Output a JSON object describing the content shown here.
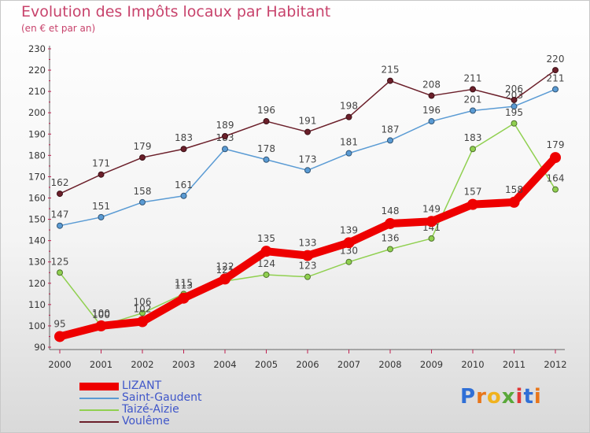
{
  "title": "Evolution des Impôts locaux par Habitant",
  "subtitle": "(en € et par an)",
  "brand": {
    "text": "Proxiti",
    "letters": [
      "P",
      "r",
      "o",
      "x",
      "i",
      "t",
      "i"
    ],
    "colors": [
      "#2f6fd6",
      "#e8761a",
      "#f0b21e",
      "#5aa83a",
      "#e03838",
      "#2f6fd6",
      "#e8761a"
    ]
  },
  "chart_data": {
    "type": "line",
    "title": "Evolution des Impôts locaux par Habitant",
    "subtitle": "(en € et par an)",
    "xlabel": "",
    "ylabel": "",
    "x": [
      "2000",
      "2001",
      "2002",
      "2003",
      "2004",
      "2005",
      "2006",
      "2007",
      "2008",
      "2009",
      "2010",
      "2011",
      "2012"
    ],
    "ylim": [
      90,
      230
    ],
    "yticks": [
      90,
      100,
      110,
      120,
      130,
      140,
      150,
      160,
      170,
      180,
      190,
      200,
      210,
      220,
      230
    ],
    "grid": false,
    "legend_position": "bottom-left",
    "series": [
      {
        "name": "LIZANT",
        "color": "#ee0000",
        "emphasis": true,
        "values": [
          95,
          100,
          102,
          113,
          122,
          135,
          133,
          139,
          148,
          149,
          157,
          158,
          179
        ]
      },
      {
        "name": "Saint-Gaudent",
        "color": "#5a9bd4",
        "emphasis": false,
        "values": [
          147,
          151,
          158,
          161,
          183,
          178,
          173,
          181,
          187,
          196,
          201,
          203,
          211
        ]
      },
      {
        "name": "Taizé-Aizie",
        "color": "#90d050",
        "emphasis": false,
        "values": [
          125,
          100,
          106,
          115,
          121,
          124,
          123,
          130,
          136,
          141,
          183,
          195,
          164
        ]
      },
      {
        "name": "Voulême",
        "color": "#6b1f2a",
        "emphasis": false,
        "values": [
          162,
          171,
          179,
          183,
          189,
          196,
          191,
          198,
          215,
          208,
          211,
          206,
          220
        ]
      }
    ]
  }
}
